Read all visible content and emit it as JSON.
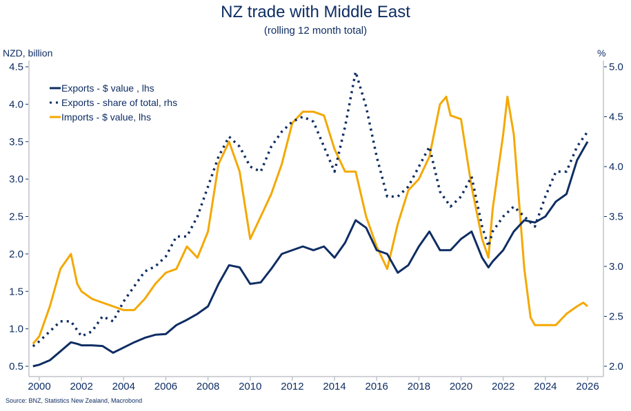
{
  "chart_data": {
    "type": "line",
    "title": "NZ trade with Middle East",
    "subtitle": "(rolling 12 month total)",
    "ylabel_left": "NZD, billion",
    "ylabel_right": "%",
    "source": "Source: BNZ, Statistics New Zealand, Macrobond",
    "xlim": [
      1999.7,
      2026.5
    ],
    "ylim_left": [
      0.5,
      4.5
    ],
    "ylim_right": [
      2.0,
      5.0
    ],
    "x_ticks": [
      "2000",
      "2002",
      "2004",
      "2006",
      "2008",
      "2010",
      "2012",
      "2014",
      "2016",
      "2018",
      "2020",
      "2022",
      "2024",
      "2026"
    ],
    "y_ticks_left": [
      "0.5",
      "1.0",
      "1.5",
      "2.0",
      "2.5",
      "3.0",
      "3.5",
      "4.0",
      "4.5"
    ],
    "y_ticks_right": [
      "2.0",
      "2.5",
      "3.0",
      "3.5",
      "4.0",
      "4.5",
      "5.0"
    ],
    "grid": false,
    "legend_position": "top-left",
    "series": [
      {
        "name": "Exports - $ value , lhs",
        "axis": "left",
        "style": "solid",
        "color": "#0e2d63",
        "x": [
          1999.7,
          2000,
          2000.5,
          2001,
          2001.5,
          2001.8,
          2002,
          2002.5,
          2003,
          2003.5,
          2004,
          2004.5,
          2005,
          2005.5,
          2006,
          2006.5,
          2007,
          2007.5,
          2008,
          2008.5,
          2009,
          2009.5,
          2010,
          2010.5,
          2011,
          2011.5,
          2012,
          2012.5,
          2013,
          2013.5,
          2014,
          2014.5,
          2015,
          2015.5,
          2016,
          2016.5,
          2017,
          2017.5,
          2018,
          2018.5,
          2019,
          2019.5,
          2020,
          2020.5,
          2021,
          2021.3,
          2021.5,
          2022,
          2022.5,
          2023,
          2023.5,
          2024,
          2024.5,
          2025,
          2025.5,
          2026
        ],
        "y": [
          0.5,
          0.52,
          0.58,
          0.7,
          0.82,
          0.8,
          0.78,
          0.78,
          0.77,
          0.68,
          0.75,
          0.82,
          0.88,
          0.92,
          0.93,
          1.05,
          1.12,
          1.2,
          1.3,
          1.6,
          1.85,
          1.82,
          1.6,
          1.62,
          1.8,
          2.0,
          2.05,
          2.1,
          2.05,
          2.1,
          1.95,
          2.15,
          2.45,
          2.35,
          2.05,
          2.0,
          1.75,
          1.85,
          2.1,
          2.3,
          2.05,
          2.05,
          2.2,
          2.3,
          1.95,
          1.82,
          1.9,
          2.05,
          2.3,
          2.45,
          2.42,
          2.5,
          2.7,
          2.8,
          3.25,
          3.5
        ]
      },
      {
        "name": "Exports - share of total, rhs",
        "axis": "right",
        "style": "dotted",
        "color": "#0e2d63",
        "x": [
          1999.7,
          2000,
          2000.5,
          2001,
          2001.5,
          2002,
          2002.5,
          2003,
          2003.5,
          2004,
          2004.5,
          2005,
          2005.5,
          2006,
          2006.5,
          2007,
          2007.5,
          2008,
          2008.5,
          2009,
          2009.5,
          2010,
          2010.5,
          2011,
          2011.5,
          2012,
          2012.5,
          2013,
          2013.5,
          2014,
          2014.5,
          2015,
          2015.5,
          2016,
          2016.5,
          2017,
          2017.5,
          2018,
          2018.5,
          2019,
          2019.5,
          2020,
          2020.5,
          2021,
          2021.3,
          2021.5,
          2022,
          2022.5,
          2023,
          2023.5,
          2024,
          2024.5,
          2025,
          2025.5,
          2026
        ],
        "y": [
          2.2,
          2.25,
          2.35,
          2.45,
          2.45,
          2.3,
          2.35,
          2.5,
          2.45,
          2.65,
          2.8,
          2.95,
          3.0,
          3.1,
          3.3,
          3.3,
          3.5,
          3.8,
          4.1,
          4.3,
          4.2,
          4.0,
          3.95,
          4.2,
          4.35,
          4.45,
          4.5,
          4.45,
          4.2,
          3.95,
          4.4,
          4.95,
          4.6,
          4.1,
          3.7,
          3.7,
          3.8,
          4.0,
          4.2,
          3.75,
          3.6,
          3.7,
          3.9,
          3.4,
          3.2,
          3.35,
          3.5,
          3.6,
          3.5,
          3.4,
          3.7,
          3.95,
          3.95,
          4.2,
          4.35
        ]
      },
      {
        "name": "Imports - $ value, lhs",
        "axis": "left",
        "style": "solid",
        "color": "#f4a800",
        "x": [
          1999.7,
          2000,
          2000.5,
          2001,
          2001.5,
          2001.8,
          2002,
          2002.5,
          2003,
          2003.5,
          2004,
          2004.5,
          2005,
          2005.5,
          2006,
          2006.5,
          2007,
          2007.5,
          2008,
          2008.5,
          2009,
          2009.5,
          2010,
          2010.5,
          2011,
          2011.5,
          2012,
          2012.5,
          2013,
          2013.5,
          2014,
          2014.5,
          2015,
          2015.5,
          2016,
          2016.5,
          2017,
          2017.5,
          2018,
          2018.5,
          2019,
          2019.3,
          2019.5,
          2020,
          2020.5,
          2021,
          2021.3,
          2021.5,
          2022,
          2022.2,
          2022.5,
          2023,
          2023.3,
          2023.5,
          2024,
          2024.5,
          2025,
          2025.5,
          2025.8,
          2026
        ],
        "y": [
          0.8,
          0.9,
          1.3,
          1.8,
          2.0,
          1.6,
          1.5,
          1.4,
          1.35,
          1.3,
          1.25,
          1.25,
          1.4,
          1.6,
          1.75,
          1.8,
          2.1,
          1.95,
          2.3,
          3.2,
          3.5,
          3.1,
          2.2,
          2.5,
          2.8,
          3.2,
          3.75,
          3.9,
          3.9,
          3.85,
          3.4,
          3.1,
          3.1,
          2.5,
          2.1,
          1.8,
          2.4,
          2.85,
          3.0,
          3.3,
          4.0,
          4.1,
          3.85,
          3.8,
          2.9,
          2.2,
          1.95,
          2.6,
          3.6,
          4.1,
          3.6,
          1.8,
          1.15,
          1.05,
          1.05,
          1.05,
          1.2,
          1.3,
          1.35,
          1.3
        ]
      }
    ]
  }
}
